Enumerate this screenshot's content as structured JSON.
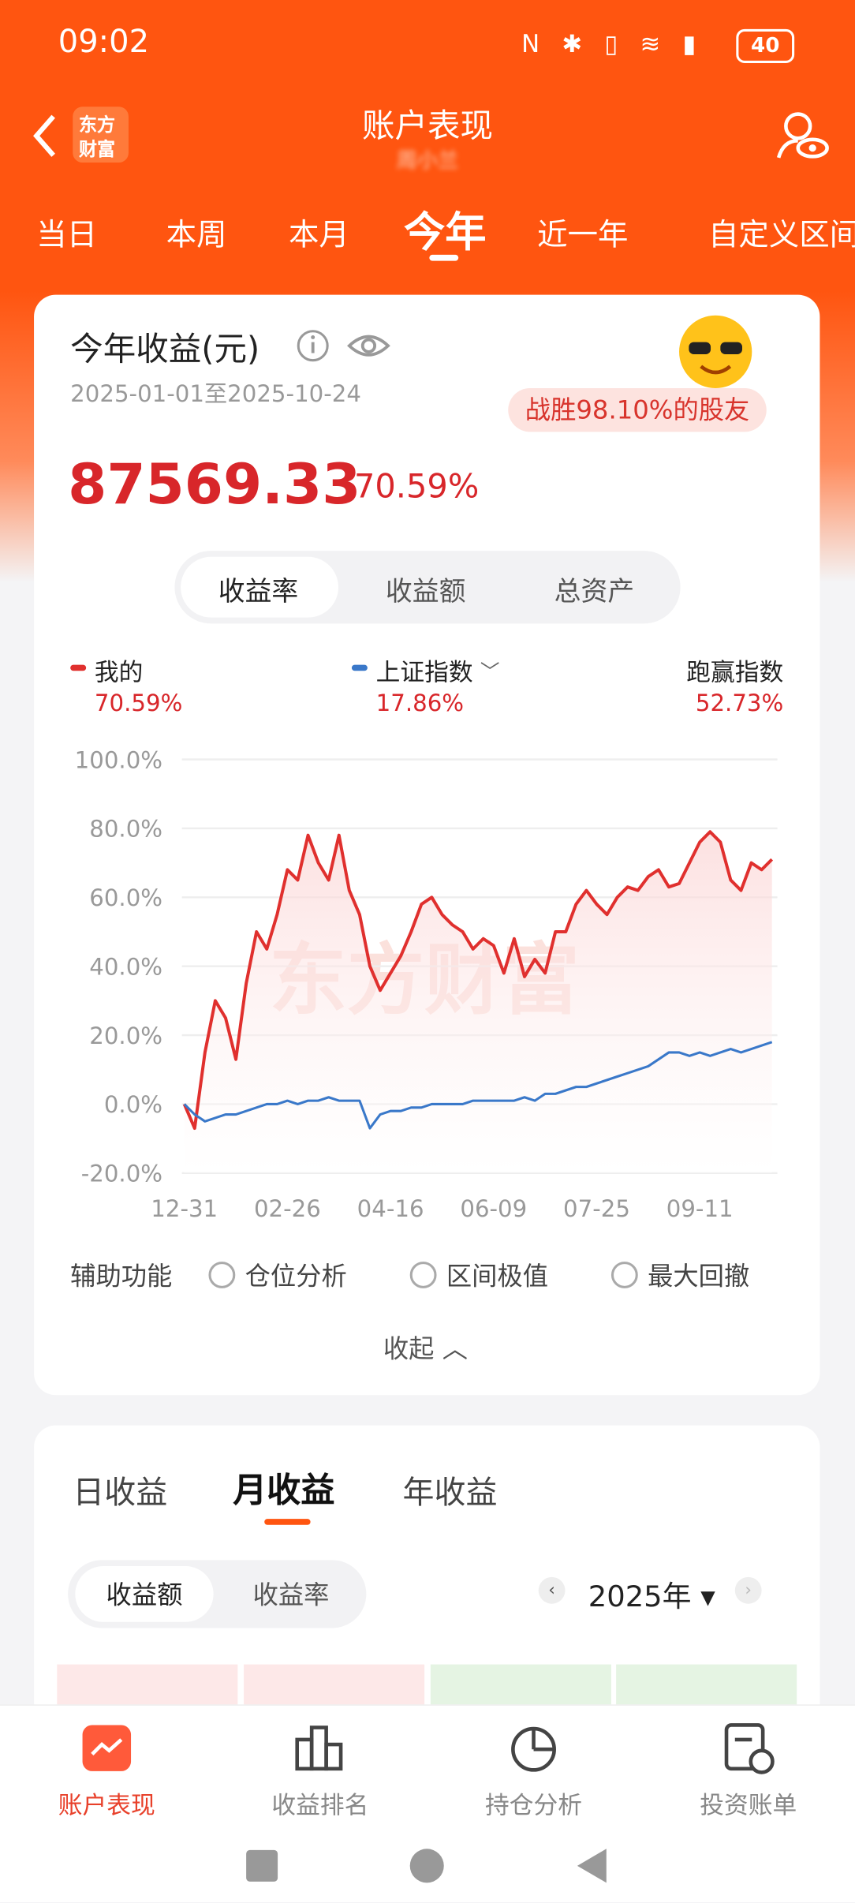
{
  "status": {
    "time": "09:02",
    "battery": "40"
  },
  "header": {
    "logo_top": "东方",
    "logo_bottom": "财富",
    "title": "账户表现",
    "subtitle": "周小兰"
  },
  "period_tabs": [
    "当日",
    "本周",
    "本月",
    "今年",
    "近一年",
    "自定义区间"
  ],
  "summary": {
    "title": "今年收益(元)",
    "date_range": "2025-01-01至2025-10-24",
    "beat": "战胜98.10%的股友",
    "amount": "87569.33",
    "rate": "70.59%"
  },
  "chart_tabs": [
    "收益率",
    "收益额",
    "总资产"
  ],
  "chart": {
    "type": "line",
    "legend": [
      {
        "name": "我的",
        "value": "70.59%"
      },
      {
        "name": "上证指数",
        "value": "17.86%"
      },
      {
        "name": "跑赢指数",
        "value": "52.73%"
      }
    ],
    "watermark": "东方财富",
    "categories": [
      "12-31",
      null,
      null,
      null,
      null,
      null,
      null,
      null,
      null,
      null,
      "02-26",
      null,
      null,
      null,
      null,
      null,
      null,
      null,
      null,
      null,
      "04-16",
      null,
      null,
      null,
      null,
      null,
      null,
      null,
      null,
      null,
      "06-09",
      null,
      null,
      null,
      null,
      null,
      null,
      null,
      null,
      null,
      "07-25",
      null,
      null,
      null,
      null,
      null,
      null,
      null,
      null,
      null,
      "09-11",
      null,
      null,
      null,
      null,
      null,
      null,
      null
    ],
    "series": [
      {
        "name": "我的",
        "color": "#e0302e",
        "values": [
          0,
          -7,
          15,
          30,
          25,
          13,
          35,
          50,
          45,
          55,
          68,
          65,
          78,
          70,
          65,
          78,
          62,
          55,
          40,
          33,
          38,
          43,
          50,
          58,
          60,
          55,
          52,
          50,
          45,
          48,
          46,
          38,
          48,
          37,
          42,
          38,
          50,
          50,
          58,
          62,
          58,
          55,
          60,
          63,
          62,
          66,
          68,
          63,
          64,
          70,
          76,
          79,
          76,
          65,
          62,
          70,
          68,
          71
        ]
      },
      {
        "name": "上证指数",
        "color": "#3a78c9",
        "values": [
          0,
          -3,
          -5,
          -4,
          -3,
          -3,
          -2,
          -1,
          0,
          0,
          1,
          0,
          1,
          1,
          2,
          1,
          1,
          1,
          -7,
          -3,
          -2,
          -2,
          -1,
          -1,
          0,
          0,
          0,
          0,
          1,
          1,
          1,
          1,
          1,
          2,
          1,
          3,
          3,
          4,
          5,
          5,
          6,
          7,
          8,
          9,
          10,
          11,
          13,
          15,
          15,
          14,
          15,
          14,
          15,
          16,
          15,
          16,
          17,
          18
        ]
      }
    ],
    "ylim": [
      -20,
      100
    ],
    "yticks": [
      {
        "value": -20,
        "label": "-20.0%"
      },
      {
        "value": 0,
        "label": "0.0%"
      },
      {
        "value": 20,
        "label": "20.0%"
      },
      {
        "value": 40,
        "label": "40.0%"
      },
      {
        "value": 60,
        "label": "60.0%"
      },
      {
        "value": 80,
        "label": "80.0%"
      },
      {
        "value": 100,
        "label": "100.0%"
      }
    ],
    "grid": true
  },
  "tools": {
    "label": "辅助功能",
    "options": [
      "仓位分析",
      "区间极值",
      "最大回撤"
    ],
    "collapse": "收起"
  },
  "income_tabs": [
    "日收益",
    "月收益",
    "年收益"
  ],
  "income_toggle": [
    "收益额",
    "收益率"
  ],
  "year": "2025年",
  "nav": [
    "账户表现",
    "收益排名",
    "持仓分析",
    "投资账单"
  ]
}
